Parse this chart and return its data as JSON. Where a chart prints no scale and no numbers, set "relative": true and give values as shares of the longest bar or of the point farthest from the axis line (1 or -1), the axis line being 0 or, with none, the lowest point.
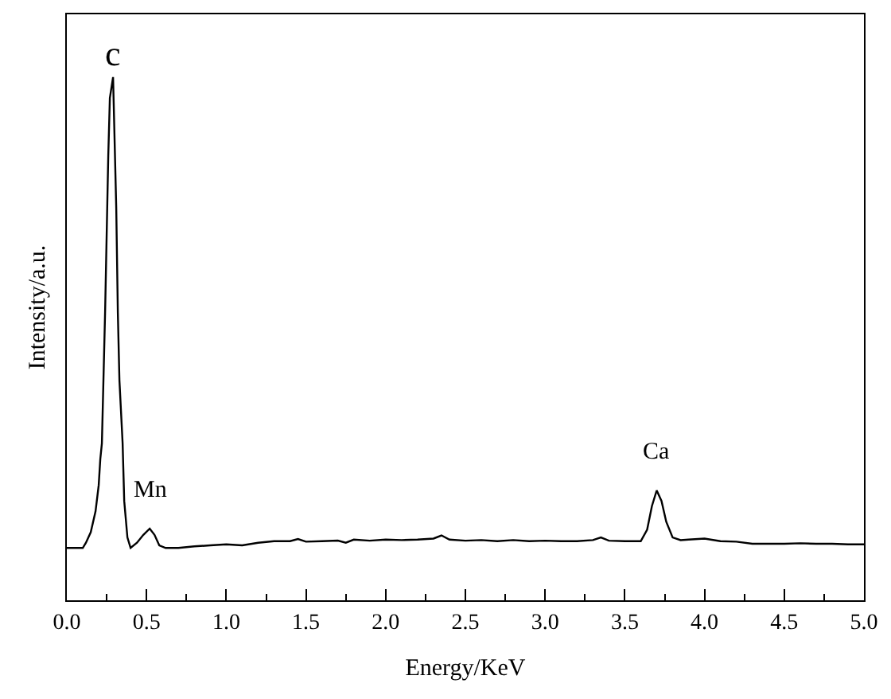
{
  "chart_data": {
    "type": "line",
    "relative": true,
    "xlabel": "Energy/KeV",
    "ylabel": "Intensity/a.u.",
    "xlim": [
      0,
      5
    ],
    "xticks": [
      {
        "value": 0,
        "label": "0.0"
      },
      {
        "value": 0.25,
        "label": null
      },
      {
        "value": 0.5,
        "label": "0.5"
      },
      {
        "value": 0.75,
        "label": null
      },
      {
        "value": 1,
        "label": "1.0"
      },
      {
        "value": 1.25,
        "label": null
      },
      {
        "value": 1.5,
        "label": "1.5"
      },
      {
        "value": 1.75,
        "label": null
      },
      {
        "value": 2,
        "label": "2.0"
      },
      {
        "value": 2.25,
        "label": null
      },
      {
        "value": 2.5,
        "label": "2.5"
      },
      {
        "value": 2.75,
        "label": null
      },
      {
        "value": 3,
        "label": "3.0"
      },
      {
        "value": 3.25,
        "label": null
      },
      {
        "value": 3.5,
        "label": "3.5"
      },
      {
        "value": 3.75,
        "label": null
      },
      {
        "value": 4,
        "label": "4.0"
      },
      {
        "value": 4.25,
        "label": null
      },
      {
        "value": 4.5,
        "label": "4.5"
      },
      {
        "value": 4.75,
        "label": null
      },
      {
        "value": 5,
        "label": "5.0"
      }
    ],
    "legend": false,
    "marker": "none",
    "line_style": "solid",
    "series": [
      {
        "color": "#000000",
        "x": [
          0,
          0.1,
          0.12,
          0.15,
          0.18,
          0.2,
          0.21,
          0.22,
          0.24,
          0.26,
          0.27,
          0.29,
          0.31,
          0.32,
          0.33,
          0.35,
          0.36,
          0.38,
          0.4,
          0.44,
          0.48,
          0.52,
          0.55,
          0.58,
          0.62,
          0.7,
          0.8,
          0.9,
          1.0,
          1.1,
          1.2,
          1.3,
          1.4,
          1.45,
          1.5,
          1.6,
          1.7,
          1.75,
          1.8,
          1.9,
          2.0,
          2.1,
          2.2,
          2.3,
          2.35,
          2.4,
          2.5,
          2.6,
          2.7,
          2.8,
          2.9,
          3.0,
          3.1,
          3.2,
          3.3,
          3.35,
          3.4,
          3.5,
          3.6,
          3.64,
          3.67,
          3.7,
          3.73,
          3.76,
          3.8,
          3.85,
          3.9,
          4.0,
          4.1,
          4.2,
          4.3,
          4.4,
          4.5,
          4.6,
          4.7,
          4.8,
          4.9,
          5.0
        ],
        "values": [
          0.1,
          0.1,
          0.11,
          0.13,
          0.17,
          0.22,
          0.27,
          0.3,
          0.55,
          0.85,
          0.96,
          1.0,
          0.75,
          0.55,
          0.42,
          0.3,
          0.19,
          0.12,
          0.1,
          0.11,
          0.125,
          0.137,
          0.125,
          0.105,
          0.1,
          0.1,
          0.103,
          0.105,
          0.107,
          0.105,
          0.11,
          0.113,
          0.113,
          0.117,
          0.112,
          0.113,
          0.114,
          0.11,
          0.116,
          0.114,
          0.116,
          0.115,
          0.116,
          0.118,
          0.124,
          0.116,
          0.114,
          0.115,
          0.113,
          0.115,
          0.113,
          0.114,
          0.113,
          0.113,
          0.115,
          0.12,
          0.114,
          0.113,
          0.113,
          0.135,
          0.18,
          0.21,
          0.19,
          0.15,
          0.12,
          0.115,
          0.116,
          0.118,
          0.113,
          0.112,
          0.108,
          0.108,
          0.108,
          0.109,
          0.108,
          0.108,
          0.107,
          0.107
        ]
      }
    ],
    "annotations": [
      {
        "text": "c",
        "x": 0.29,
        "y": 1.0
      },
      {
        "text": "Mn",
        "x": 0.52,
        "y": 0.137
      },
      {
        "text": "Ca",
        "x": 3.7,
        "y": 0.21
      }
    ]
  }
}
